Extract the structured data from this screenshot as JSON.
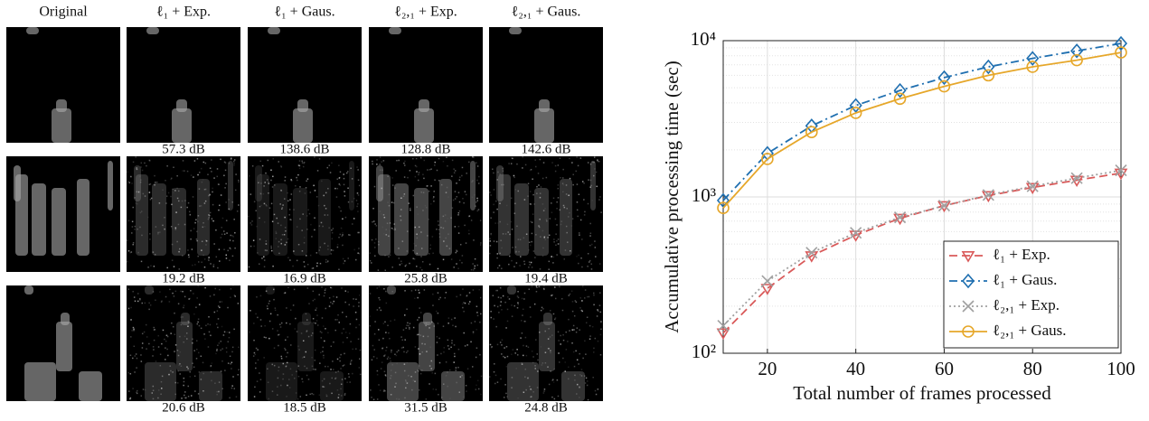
{
  "figure": {
    "columns": [
      "Original",
      "ℓ₁ + Exp.",
      "ℓ₁ + Gaus.",
      "ℓ₂,₁ + Exp.",
      "ℓ₂,₁ + Gaus."
    ],
    "psnr": [
      [
        "57.3 dB",
        "138.6 dB",
        "128.8 dB",
        "142.6 dB"
      ],
      [
        "19.2 dB",
        "16.9 dB",
        "25.8 dB",
        "19.4 dB"
      ],
      [
        "20.6 dB",
        "18.5 dB",
        "31.5 dB",
        "24.8 dB"
      ]
    ]
  },
  "chart_data": {
    "type": "line",
    "xlabel": "Total number of frames processed",
    "ylabel": "Accumulative processing time (sec)",
    "x": [
      10,
      20,
      30,
      40,
      50,
      60,
      70,
      80,
      90,
      100
    ],
    "xlim": [
      10,
      100
    ],
    "xticks": [
      20,
      40,
      60,
      80,
      100
    ],
    "ylim": [
      100,
      10000
    ],
    "log_y": true,
    "yticks": [
      {
        "value": 100,
        "label": "10²"
      },
      {
        "value": 1000,
        "label": "10³"
      },
      {
        "value": 10000,
        "label": "10⁴"
      }
    ],
    "grid": true,
    "legend": "lower right",
    "series": [
      {
        "name": "ℓ₁ + Exp.",
        "color": "#d95a5a",
        "marker": "triangle-down",
        "style": "dashed",
        "values": [
          135,
          260,
          420,
          570,
          730,
          880,
          1020,
          1150,
          1280,
          1420
        ]
      },
      {
        "name": "ℓ₁ + Gaus.",
        "color": "#1f6fb0",
        "marker": "diamond",
        "style": "dashdot",
        "values": [
          950,
          1900,
          2850,
          3850,
          4800,
          5800,
          6800,
          7700,
          8600,
          9600
        ]
      },
      {
        "name": "ℓ₂,₁ + Exp.",
        "color": "#a0a0a0",
        "marker": "x",
        "style": "dotted",
        "values": [
          150,
          290,
          440,
          590,
          740,
          880,
          1030,
          1170,
          1320,
          1480
        ]
      },
      {
        "name": "ℓ₂,₁ + Gaus.",
        "color": "#e6a72a",
        "marker": "circle",
        "style": "solid",
        "values": [
          850,
          1750,
          2600,
          3450,
          4250,
          5100,
          6000,
          6800,
          7500,
          8400
        ]
      }
    ]
  }
}
